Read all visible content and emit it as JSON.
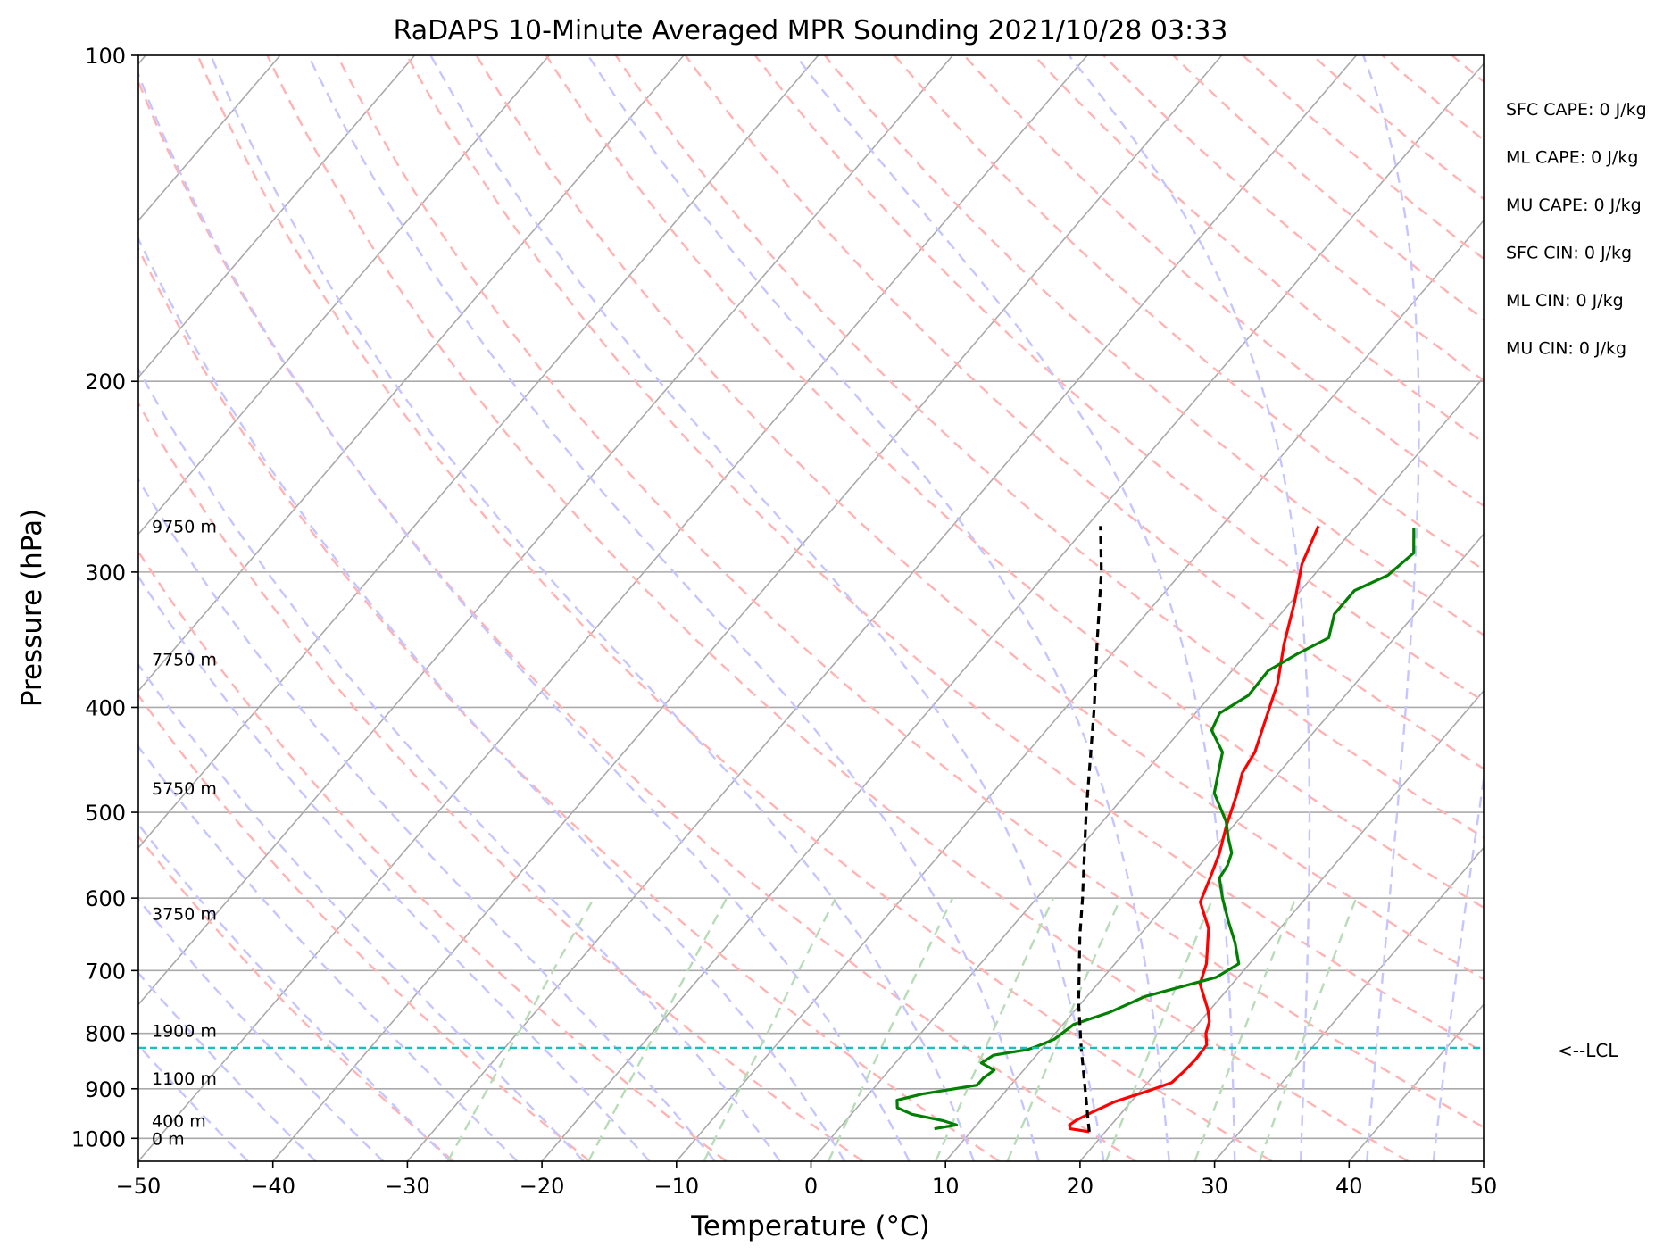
{
  "chart_data": {
    "type": "line",
    "title": "RaDAPS 10-Minute Averaged MPR Sounding 2021/10/28 03:33",
    "xlabel": "Temperature (°C)",
    "ylabel": "Pressure (hPa)",
    "xlim": [
      -50,
      50
    ],
    "ylim": [
      1050,
      100
    ],
    "y_scale": "log",
    "grid": true,
    "x_ticks": [
      -50,
      -40,
      -30,
      -20,
      -10,
      0,
      10,
      20,
      30,
      40,
      50
    ],
    "x_tick_labels": [
      "−50",
      "−40",
      "−30",
      "−20",
      "−10",
      "0",
      "10",
      "20",
      "30",
      "40",
      "50"
    ],
    "y_ticks": [
      1000,
      900,
      800,
      700,
      600,
      500,
      400,
      300,
      200,
      100
    ],
    "y_tick_labels": [
      "1000",
      "900",
      "800",
      "700",
      "600",
      "500",
      "400",
      "300",
      "200",
      "100"
    ],
    "series": [
      {
        "kind": "temperature",
        "color": "#ff0000",
        "points": [
          [
            986,
            18.8
          ],
          [
            980,
            17.2
          ],
          [
            972,
            16.9
          ],
          [
            962,
            17.1
          ],
          [
            945,
            17.8
          ],
          [
            925,
            18.8
          ],
          [
            905,
            20.5
          ],
          [
            888,
            21.8
          ],
          [
            865,
            22.0
          ],
          [
            845,
            22.1
          ],
          [
            820,
            22.0
          ],
          [
            800,
            21.2
          ],
          [
            780,
            20.7
          ],
          [
            760,
            19.8
          ],
          [
            720,
            17.6
          ],
          [
            690,
            16.8
          ],
          [
            640,
            14.7
          ],
          [
            605,
            12.4
          ],
          [
            575,
            11.6
          ],
          [
            545,
            10.7
          ],
          [
            515,
            9.5
          ],
          [
            480,
            8.2
          ],
          [
            460,
            7.3
          ],
          [
            440,
            6.9
          ],
          [
            410,
            5.6
          ],
          [
            380,
            4.2
          ],
          [
            350,
            2.2
          ],
          [
            320,
            0.3
          ],
          [
            295,
            -1.6
          ],
          [
            272,
            -2.8
          ]
        ]
      },
      {
        "kind": "dewpoint",
        "color": "#008000",
        "points": [
          [
            980,
            7.1
          ],
          [
            972,
            8.5
          ],
          [
            963,
            7.2
          ],
          [
            950,
            4.5
          ],
          [
            937,
            3.0
          ],
          [
            922,
            2.5
          ],
          [
            910,
            4.0
          ],
          [
            893,
            7.5
          ],
          [
            880,
            7.5
          ],
          [
            865,
            7.8
          ],
          [
            852,
            6.4
          ],
          [
            838,
            6.8
          ],
          [
            828,
            9.0
          ],
          [
            822,
            9.5
          ],
          [
            810,
            10.3
          ],
          [
            800,
            10.5
          ],
          [
            785,
            10.8
          ],
          [
            765,
            12.7
          ],
          [
            740,
            14.3
          ],
          [
            710,
            18.4
          ],
          [
            690,
            19.2
          ],
          [
            660,
            17.6
          ],
          [
            630,
            15.7
          ],
          [
            600,
            13.8
          ],
          [
            575,
            12.3
          ],
          [
            560,
            12.1
          ],
          [
            545,
            11.6
          ],
          [
            528,
            10.4
          ],
          [
            510,
            9.2
          ],
          [
            480,
            6.5
          ],
          [
            440,
            4.5
          ],
          [
            420,
            2.3
          ],
          [
            405,
            1.8
          ],
          [
            390,
            2.8
          ],
          [
            370,
            2.7
          ],
          [
            357,
            3.8
          ],
          [
            345,
            5.1
          ],
          [
            328,
            4.0
          ],
          [
            312,
            4.0
          ],
          [
            302,
            5.5
          ],
          [
            288,
            6.0
          ],
          [
            273,
            4.4
          ]
        ]
      },
      {
        "kind": "parcel",
        "color": "#000000",
        "points": [
          [
            986,
            18.8
          ],
          [
            825,
            12.85
          ],
          [
            750,
            9.8
          ],
          [
            650,
            5.6
          ],
          [
            600,
            3.4
          ],
          [
            500,
            -1.8
          ],
          [
            400,
            -7.9
          ],
          [
            350,
            -11.7
          ],
          [
            300,
            -16.0
          ],
          [
            272,
            -19.0
          ]
        ]
      }
    ],
    "lcl_pressure": 825,
    "lcl_label": "<--LCL",
    "height_labels": [
      {
        "pressure": 272,
        "text": "9750 m"
      },
      {
        "pressure": 361,
        "text": "7750 m"
      },
      {
        "pressure": 475,
        "text": "5750 m"
      },
      {
        "pressure": 620,
        "text": "3750 m"
      },
      {
        "pressure": 795,
        "text": "1900 m"
      },
      {
        "pressure": 880,
        "text": "1100 m"
      },
      {
        "pressure": 963,
        "text": "400 m"
      },
      {
        "pressure": 1000,
        "text": "0 m"
      }
    ],
    "annotations": [
      "SFC CAPE: 0 J/kg",
      "ML CAPE: 0 J/kg",
      "MU CAPE: 0 J/kg",
      "SFC CIN: 0 J/kg",
      "ML CIN: 0 J/kg",
      "MU CIN: 0 J/kg"
    ]
  }
}
